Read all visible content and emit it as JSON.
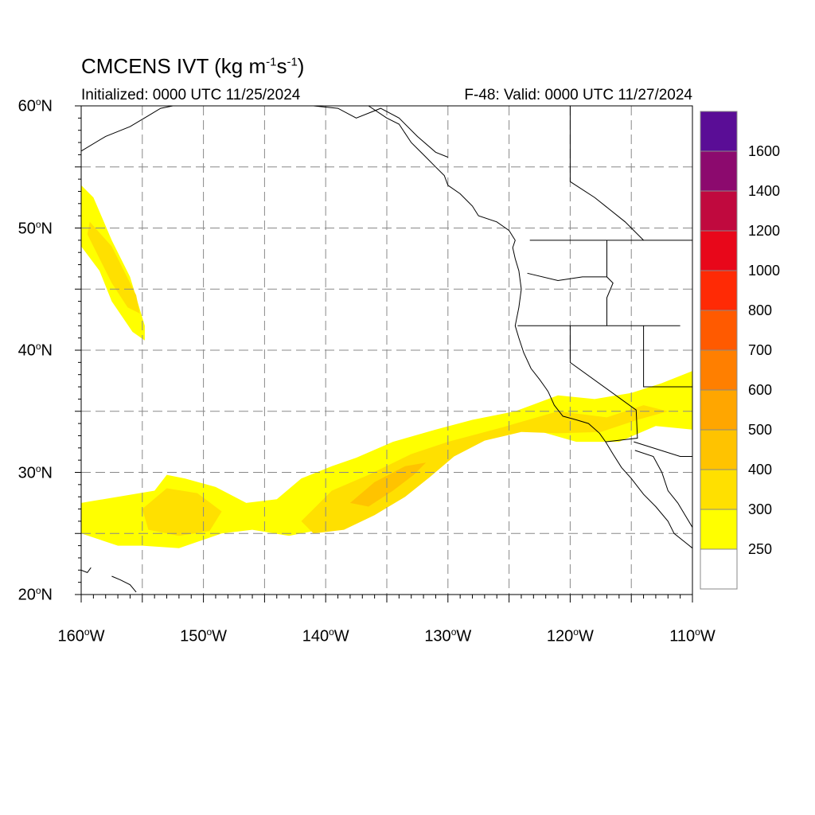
{
  "title": {
    "main": "CMCENS IVT (kg m",
    "exp1": "-1",
    "mid": "s",
    "exp2": "-1",
    "end": ")"
  },
  "subtitle": {
    "initialized": "Initialized: 0000 UTC 11/25/2024",
    "valid": "F-48: Valid: 0000 UTC 11/27/2024"
  },
  "map": {
    "lon_range": [
      -160,
      -110
    ],
    "lat_range": [
      20,
      60
    ],
    "grid_lines": "dashed",
    "lat_ticks": [
      {
        "value": 60,
        "num": "60",
        "deg": "o",
        "hemi": "N"
      },
      {
        "value": 50,
        "num": "50",
        "deg": "o",
        "hemi": "N"
      },
      {
        "value": 40,
        "num": "40",
        "deg": "o",
        "hemi": "N"
      },
      {
        "value": 30,
        "num": "30",
        "deg": "o",
        "hemi": "N"
      },
      {
        "value": 20,
        "num": "20",
        "deg": "o",
        "hemi": "N"
      }
    ],
    "lon_ticks": [
      {
        "value": -160,
        "num": "160",
        "deg": "o",
        "hemi": "W"
      },
      {
        "value": -150,
        "num": "150",
        "deg": "o",
        "hemi": "W"
      },
      {
        "value": -140,
        "num": "140",
        "deg": "o",
        "hemi": "W"
      },
      {
        "value": -130,
        "num": "130",
        "deg": "o",
        "hemi": "W"
      },
      {
        "value": -120,
        "num": "120",
        "deg": "o",
        "hemi": "W"
      },
      {
        "value": -110,
        "num": "110",
        "deg": "o",
        "hemi": "W"
      }
    ]
  },
  "colorbar": {
    "labels": [
      "1600",
      "1400",
      "1200",
      "1000",
      "800",
      "700",
      "600",
      "500",
      "400",
      "300",
      "250"
    ],
    "colors_top_to_bottom": [
      "#5a0d96",
      "#8c0a6e",
      "#c0093e",
      "#e8071a",
      "#ff2a05",
      "#ff5a00",
      "#ff7f00",
      "#ffa600",
      "#ffc300",
      "#ffe000",
      "#ffff00",
      "#ffffff"
    ]
  },
  "ivt_colors": {
    "250": "#ffff00",
    "300": "#ffe000",
    "400": "#ffc300"
  }
}
